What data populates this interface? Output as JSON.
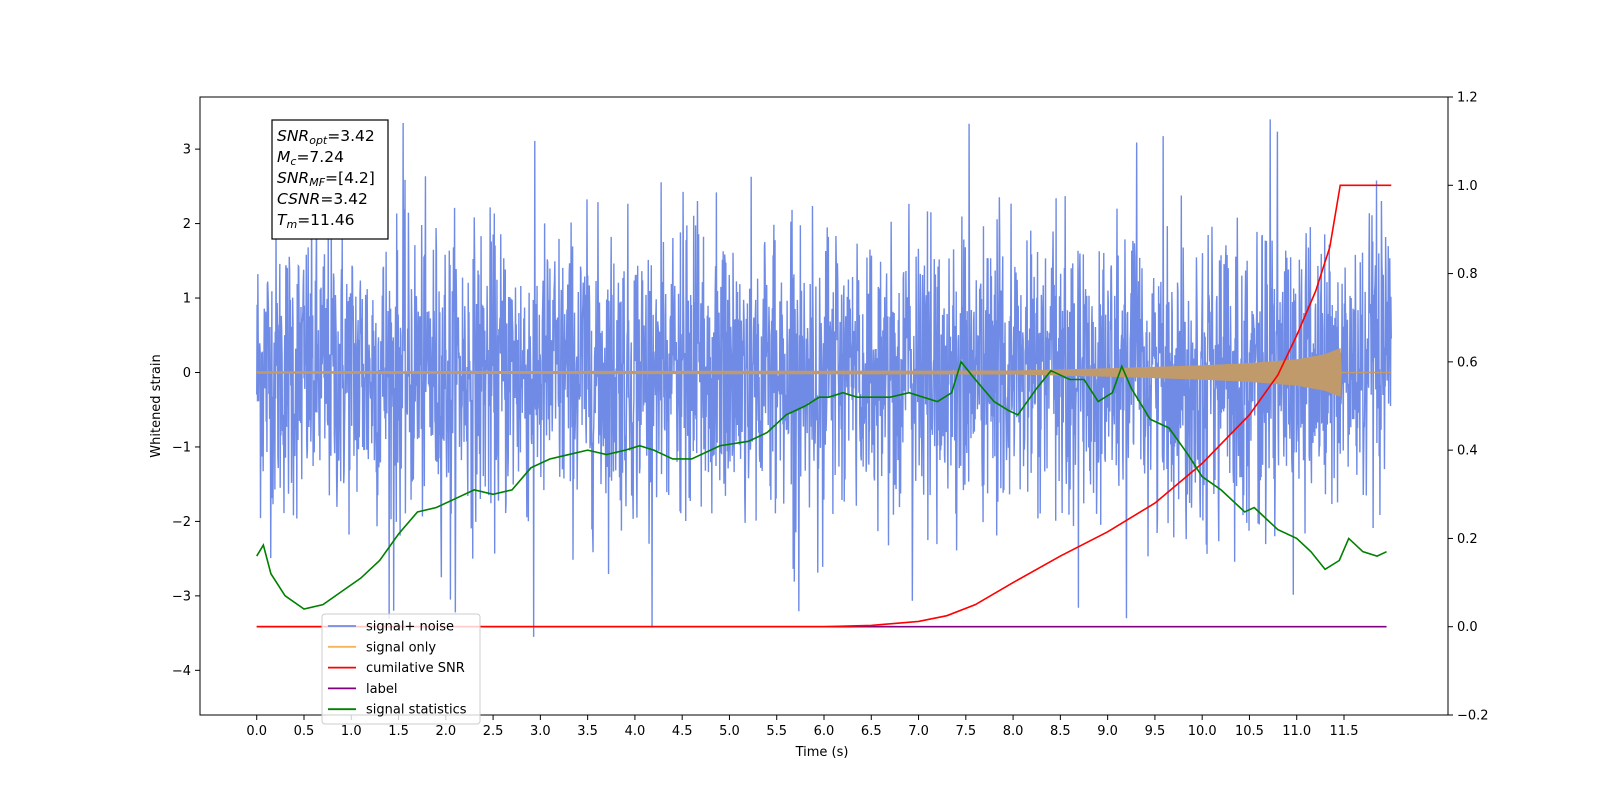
{
  "chart_data": {
    "type": "line",
    "xlabel": "Time (s)",
    "ylabel": "Whitened strain",
    "xlim": [
      -0.6,
      12.6
    ],
    "ylim_left": [
      -4.6,
      3.7
    ],
    "ylim_right": [
      -0.2,
      1.2
    ],
    "x_ticks": [
      "0.0",
      "0.5",
      "1.0",
      "1.5",
      "2.0",
      "2.5",
      "3.0",
      "3.5",
      "4.0",
      "4.5",
      "5.0",
      "5.5",
      "6.0",
      "6.5",
      "7.0",
      "7.5",
      "8.0",
      "8.5",
      "9.0",
      "9.5",
      "10.0",
      "10.5",
      "11.0",
      "11.5"
    ],
    "y_ticks_left": [
      "3",
      "2",
      "1",
      "0",
      "−1",
      "−2",
      "−3",
      "−4"
    ],
    "y_ticks_right": [
      "1.2",
      "1.0",
      "0.8",
      "0.6",
      "0.4",
      "0.2",
      "0.0",
      "−0.2"
    ],
    "annotation": {
      "lines": [
        {
          "name": "SNR",
          "sub": "opt",
          "value": "=3.42"
        },
        {
          "name": "M",
          "sub": "c",
          "value": "=7.24"
        },
        {
          "name": "SNR",
          "sub": "MF",
          "value": "=[4.2]"
        },
        {
          "name": "CSNR",
          "sub": "",
          "value": "=3.42"
        },
        {
          "name": "T",
          "sub": "m",
          "value": "=11.46"
        }
      ]
    },
    "legend": {
      "placement": "lower-left",
      "items": [
        {
          "label": "signal+ noise",
          "color": "#6f8be6"
        },
        {
          "label": "signal only",
          "color": "#f5b35a"
        },
        {
          "label": "cumilative SNR",
          "color": "#ff0000"
        },
        {
          "label": "label",
          "color": "#800080"
        },
        {
          "label": "signal statistics",
          "color": "#008000"
        }
      ]
    },
    "series": [
      {
        "name": "signal+ noise",
        "axis": "left",
        "color": "#6f8be6",
        "x_range": [
          0.0,
          12.0
        ],
        "typical_band": [
          -2.0,
          2.0
        ],
        "max": 3.4,
        "min": -3.55,
        "spikes": [
          [
            1.55,
            3.35
          ],
          [
            2.93,
            -3.55
          ],
          [
            10.72,
            3.4
          ],
          [
            9.2,
            -3.3
          ],
          [
            1.45,
            -3.2
          ],
          [
            2.05,
            -3.05
          ]
        ]
      },
      {
        "name": "signal only",
        "axis": "left",
        "color": "#c19a6b",
        "envelope": {
          "x": [
            0.0,
            8.0,
            9.0,
            10.0,
            10.5,
            11.0,
            11.3,
            11.46,
            11.47,
            12.0
          ],
          "amp": [
            0.01,
            0.02,
            0.05,
            0.09,
            0.12,
            0.17,
            0.24,
            0.32,
            0.0,
            0.0
          ]
        }
      },
      {
        "name": "cumilative SNR",
        "axis": "right",
        "color": "#ff0000",
        "x": [
          0.0,
          6.0,
          6.5,
          7.0,
          7.3,
          7.6,
          8.0,
          8.5,
          9.0,
          9.5,
          10.0,
          10.5,
          10.8,
          11.0,
          11.2,
          11.35,
          11.46,
          12.0
        ],
        "values": [
          0.0,
          0.0,
          0.003,
          0.012,
          0.025,
          0.05,
          0.1,
          0.16,
          0.215,
          0.28,
          0.37,
          0.48,
          0.57,
          0.66,
          0.76,
          0.86,
          1.0,
          1.0
        ]
      },
      {
        "name": "label",
        "axis": "right",
        "color": "#800080",
        "x": [
          0.0,
          11.95
        ],
        "values": [
          0.0,
          0.0
        ]
      },
      {
        "name": "signal statistics",
        "axis": "right",
        "color": "#008000",
        "x": [
          0.0,
          0.07,
          0.15,
          0.3,
          0.5,
          0.7,
          0.9,
          1.1,
          1.3,
          1.5,
          1.7,
          1.9,
          2.1,
          2.3,
          2.5,
          2.7,
          2.9,
          3.1,
          3.3,
          3.5,
          3.7,
          3.9,
          4.05,
          4.2,
          4.4,
          4.6,
          4.9,
          5.2,
          5.4,
          5.6,
          5.8,
          5.95,
          6.05,
          6.2,
          6.35,
          6.5,
          6.7,
          6.9,
          7.2,
          7.35,
          7.45,
          7.6,
          7.8,
          7.95,
          8.05,
          8.25,
          8.4,
          8.6,
          8.75,
          8.9,
          9.05,
          9.15,
          9.25,
          9.45,
          9.65,
          9.85,
          10.0,
          10.2,
          10.45,
          10.55,
          10.65,
          10.8,
          11.0,
          11.15,
          11.3,
          11.45,
          11.55,
          11.7,
          11.85,
          11.95
        ],
        "values": [
          0.16,
          0.185,
          0.12,
          0.07,
          0.04,
          0.05,
          0.08,
          0.11,
          0.15,
          0.21,
          0.26,
          0.27,
          0.29,
          0.31,
          0.3,
          0.31,
          0.36,
          0.38,
          0.39,
          0.4,
          0.39,
          0.4,
          0.41,
          0.4,
          0.38,
          0.38,
          0.41,
          0.42,
          0.44,
          0.48,
          0.5,
          0.52,
          0.52,
          0.53,
          0.52,
          0.52,
          0.52,
          0.53,
          0.51,
          0.53,
          0.6,
          0.56,
          0.51,
          0.49,
          0.48,
          0.54,
          0.58,
          0.56,
          0.56,
          0.51,
          0.53,
          0.59,
          0.54,
          0.47,
          0.45,
          0.39,
          0.34,
          0.31,
          0.26,
          0.27,
          0.25,
          0.22,
          0.2,
          0.17,
          0.13,
          0.15,
          0.2,
          0.17,
          0.16,
          0.17
        ]
      }
    ]
  }
}
